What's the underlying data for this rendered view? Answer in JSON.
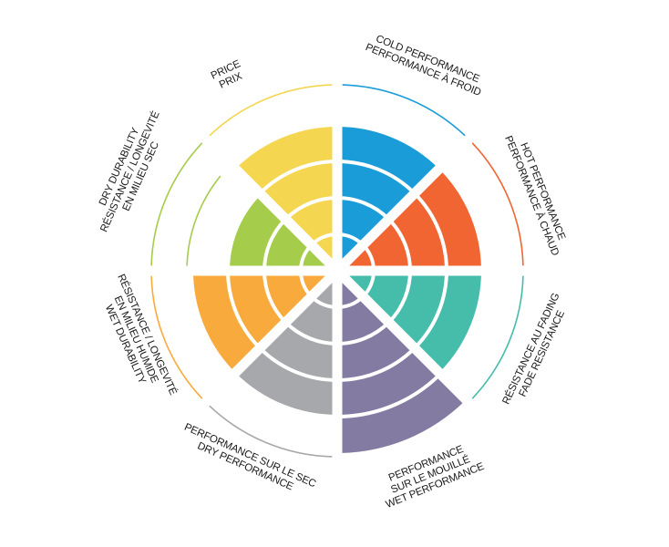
{
  "chart_data": {
    "type": "polar-bar",
    "max_level": 5,
    "categories": [
      {
        "key": "cold",
        "lines": [
          "COLD PERFORMANCE",
          "PERFORMANCE À FROID"
        ],
        "value": 4,
        "color": "#1a9cd8"
      },
      {
        "key": "hot",
        "lines": [
          "HOT PERFORMANCE",
          "PERFORMANCE À CHAUD"
        ],
        "value": 4,
        "color": "#f16532"
      },
      {
        "key": "fade",
        "lines": [
          "RÉSISTANCE AU FADING",
          "FADE RESISTANCE"
        ],
        "value": 4,
        "color": "#45bdaa"
      },
      {
        "key": "wet-performance",
        "lines": [
          "PERFORMANCE",
          "SUR LE MOUILLÉ",
          "WET PERFORMANCE"
        ],
        "value": 5,
        "color": "#837ba2"
      },
      {
        "key": "dry-performance",
        "lines": [
          "PERFORMANCE SUR LE SEC",
          "DRY PERFORMANCE"
        ],
        "value": 4,
        "color": "#a7a8ab"
      },
      {
        "key": "wet-durability",
        "lines": [
          "RÉSISTANCE / LONGEVITÉ",
          "EN MILIEU HUMIDE",
          "WET DURABILITY"
        ],
        "value": 4,
        "color": "#f9aa3c"
      },
      {
        "key": "dry-durability",
        "lines": [
          "DRY DURABILITY",
          "RÉSISTANCE / LONGEVITÉ",
          "EN MILIEU SEC"
        ],
        "value": 3,
        "color": "#a5cc4a"
      },
      {
        "key": "price",
        "lines": [
          "PRICE",
          "PRIX"
        ],
        "value": 4,
        "color": "#f4d651"
      }
    ]
  }
}
